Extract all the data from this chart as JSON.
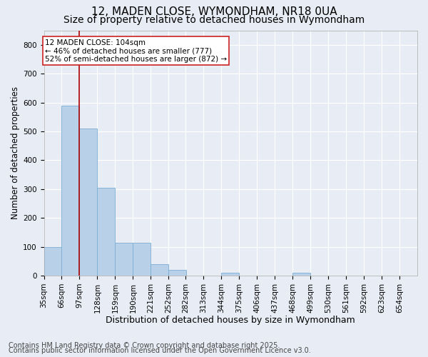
{
  "title1": "12, MADEN CLOSE, WYMONDHAM, NR18 0UA",
  "title2": "Size of property relative to detached houses in Wymondham",
  "xlabel": "Distribution of detached houses by size in Wymondham",
  "ylabel": "Number of detached properties",
  "categories": [
    "35sqm",
    "66sqm",
    "97sqm",
    "128sqm",
    "159sqm",
    "190sqm",
    "221sqm",
    "252sqm",
    "282sqm",
    "313sqm",
    "344sqm",
    "375sqm",
    "406sqm",
    "437sqm",
    "468sqm",
    "499sqm",
    "530sqm",
    "561sqm",
    "592sqm",
    "623sqm",
    "654sqm"
  ],
  "bin_edges": [
    35,
    66,
    97,
    128,
    159,
    190,
    221,
    252,
    282,
    313,
    344,
    375,
    406,
    437,
    468,
    499,
    530,
    561,
    592,
    623,
    654
  ],
  "bar_heights": [
    100,
    590,
    510,
    305,
    115,
    115,
    40,
    20,
    0,
    0,
    10,
    0,
    0,
    0,
    10,
    0,
    0,
    0,
    0,
    0,
    0
  ],
  "bar_color": "#b8d0e8",
  "bar_edge_color": "#7aadd4",
  "vline_x": 97,
  "vline_color": "#aa0000",
  "annotation_text": "12 MADEN CLOSE: 104sqm\n← 46% of detached houses are smaller (777)\n52% of semi-detached houses are larger (872) →",
  "annotation_box_color": "#ffffff",
  "annotation_edge_color": "#cc2222",
  "ylim": [
    0,
    850
  ],
  "yticks": [
    0,
    100,
    200,
    300,
    400,
    500,
    600,
    700,
    800
  ],
  "bg_color": "#e8ecf4",
  "plot_bg_color": "#e8ecf4",
  "grid_color": "#ffffff",
  "footer1": "Contains HM Land Registry data © Crown copyright and database right 2025.",
  "footer2": "Contains public sector information licensed under the Open Government Licence v3.0.",
  "title1_fontsize": 11,
  "title2_fontsize": 10,
  "xlabel_fontsize": 9,
  "ylabel_fontsize": 8.5,
  "tick_fontsize": 7.5,
  "footer_fontsize": 7,
  "annotation_fontsize": 7.5
}
